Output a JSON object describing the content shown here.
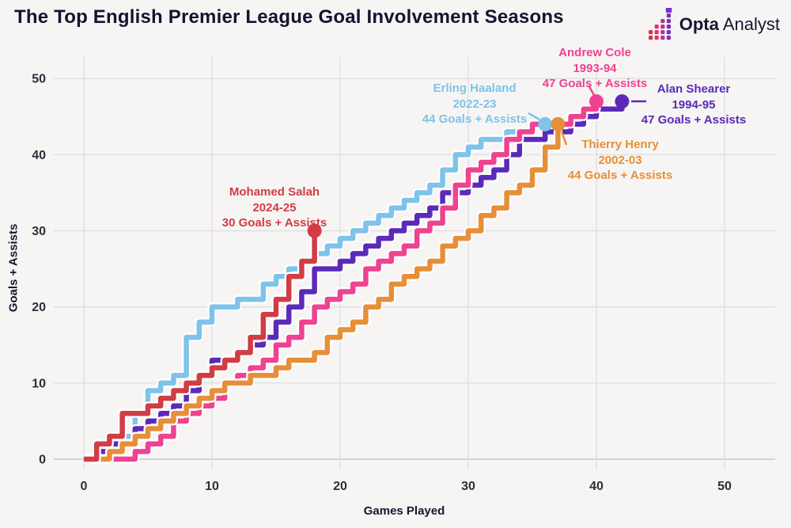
{
  "header": {
    "title": "The Top English Premier League Goal Involvement Seasons",
    "brand": {
      "bold": "Opta",
      "regular": "Analyst"
    }
  },
  "chart_data": {
    "type": "line",
    "step": true,
    "title": "The Top English Premier League Goal Involvement Seasons",
    "xlabel": "Games Played",
    "ylabel": "Goals + Assists",
    "xlim": [
      0,
      52
    ],
    "ylim": [
      0,
      52
    ],
    "x_ticks": [
      0,
      10,
      20,
      30,
      40,
      50
    ],
    "y_ticks": [
      0,
      10,
      20,
      30,
      40,
      50
    ],
    "grid": true,
    "background": "#f6f5f3",
    "gridline_color": "#dedee2",
    "zeroline_color": "#c7c7cd",
    "series": [
      {
        "name": "Mohamed Salah",
        "season": "2024-25",
        "stat": "30 Goals + Assists",
        "games": 18,
        "total": 30,
        "color": "#d23c45",
        "values": [
          2,
          3,
          6,
          6,
          7,
          8,
          9,
          10,
          11,
          12,
          13,
          14,
          16,
          19,
          21,
          24,
          26,
          30
        ]
      },
      {
        "name": "Erling Haaland",
        "season": "2022-23",
        "stat": "44 Goals + Assists",
        "games": 36,
        "total": 44,
        "color": "#7ec3ea",
        "values": [
          2,
          3,
          3,
          6,
          9,
          10,
          11,
          16,
          18,
          20,
          20,
          21,
          21,
          23,
          24,
          25,
          26,
          27,
          28,
          29,
          30,
          31,
          32,
          33,
          34,
          35,
          36,
          38,
          40,
          41,
          42,
          42,
          43,
          43,
          44,
          44
        ]
      },
      {
        "name": "Thierry Henry",
        "season": "2002-03",
        "stat": "44 Goals + Assists",
        "games": 37,
        "total": 44,
        "color": "#e78f38",
        "values": [
          0,
          1,
          2,
          3,
          4,
          5,
          6,
          7,
          8,
          9,
          10,
          10,
          11,
          11,
          12,
          13,
          13,
          14,
          16,
          17,
          18,
          20,
          21,
          23,
          24,
          25,
          26,
          28,
          29,
          30,
          32,
          33,
          35,
          36,
          38,
          41,
          44
        ]
      },
      {
        "name": "Andrew Cole",
        "season": "1993-94",
        "stat": "47 Goals + Assists",
        "games": 40,
        "total": 47,
        "color": "#ef4291",
        "values": [
          0,
          0,
          0,
          1,
          2,
          3,
          5,
          6,
          7,
          8,
          10,
          11,
          12,
          13,
          15,
          16,
          18,
          20,
          21,
          22,
          23,
          25,
          26,
          27,
          28,
          30,
          31,
          33,
          36,
          38,
          39,
          40,
          42,
          43,
          44,
          44,
          44,
          45,
          46,
          47
        ]
      },
      {
        "name": "Alan Shearer",
        "season": "1994-95",
        "stat": "47 Goals + Assists",
        "games": 42,
        "total": 47,
        "color": "#5b2ab9",
        "values": [
          1,
          2,
          2,
          4,
          5,
          6,
          7,
          9,
          11,
          13,
          13,
          14,
          15,
          16,
          18,
          20,
          22,
          25,
          25,
          26,
          27,
          28,
          29,
          30,
          31,
          32,
          33,
          35,
          35,
          36,
          37,
          38,
          40,
          42,
          42,
          43,
          43,
          44,
          45,
          46,
          46,
          47
        ]
      }
    ],
    "logo_bar_colors": [
      "#dc3545",
      "#e0346e",
      "#b93397",
      "#7e2ec4"
    ]
  }
}
